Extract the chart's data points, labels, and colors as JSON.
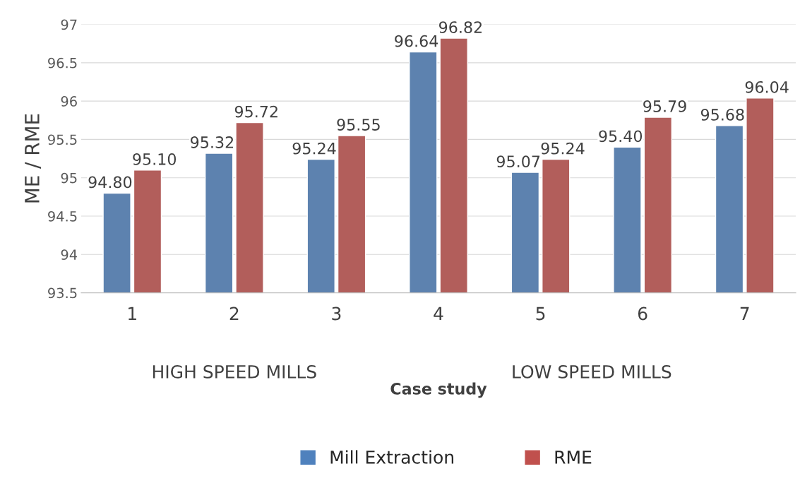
{
  "chart_data": {
    "type": "bar",
    "xlabel": "Case study",
    "ylabel": "ME / RME",
    "categories": [
      "1",
      "2",
      "3",
      "4",
      "5",
      "6",
      "7"
    ],
    "series": [
      {
        "name": "Mill Extraction",
        "color": "#4f81bd",
        "values": [
          94.8,
          95.32,
          95.24,
          96.64,
          95.07,
          95.4,
          95.68
        ],
        "value_labels": [
          "94.80",
          "95.32",
          "95.24",
          "96.64",
          "95.07",
          "95.40",
          "95.68"
        ]
      },
      {
        "name": "RME",
        "color": "#c0504d",
        "values": [
          95.1,
          95.72,
          95.55,
          96.82,
          95.24,
          95.79,
          96.04
        ],
        "value_labels": [
          "95.10",
          "95.72",
          "95.55",
          "96.82",
          "95.24",
          "95.79",
          "96.04"
        ]
      }
    ],
    "annotations": [
      "HIGH SPEED MILLS",
      "LOW SPEED MILLS"
    ],
    "ylim": [
      93.5,
      97
    ],
    "yticks": [
      93.5,
      94,
      94.5,
      95,
      95.5,
      96,
      96.5,
      97
    ],
    "grid": "y",
    "legend": "bottom"
  }
}
